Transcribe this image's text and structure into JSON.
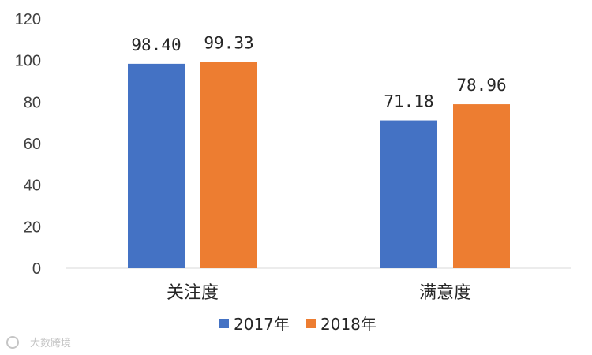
{
  "chart_data": {
    "type": "bar",
    "categories": [
      "关注度",
      "满意度"
    ],
    "series": [
      {
        "name": "2017年",
        "values": [
          98.4,
          71.18
        ],
        "labels": [
          "98.40",
          "71.18"
        ],
        "color": "#4472C4"
      },
      {
        "name": "2018年",
        "values": [
          99.33,
          78.96
        ],
        "labels": [
          "99.33",
          "78.96"
        ],
        "color": "#ED7D31"
      }
    ],
    "yticks": [
      "0",
      "20",
      "40",
      "60",
      "80",
      "100",
      "120"
    ],
    "ylim": [
      0,
      120
    ],
    "grid": false,
    "legend_position": "bottom"
  },
  "watermark": "大数跨境"
}
